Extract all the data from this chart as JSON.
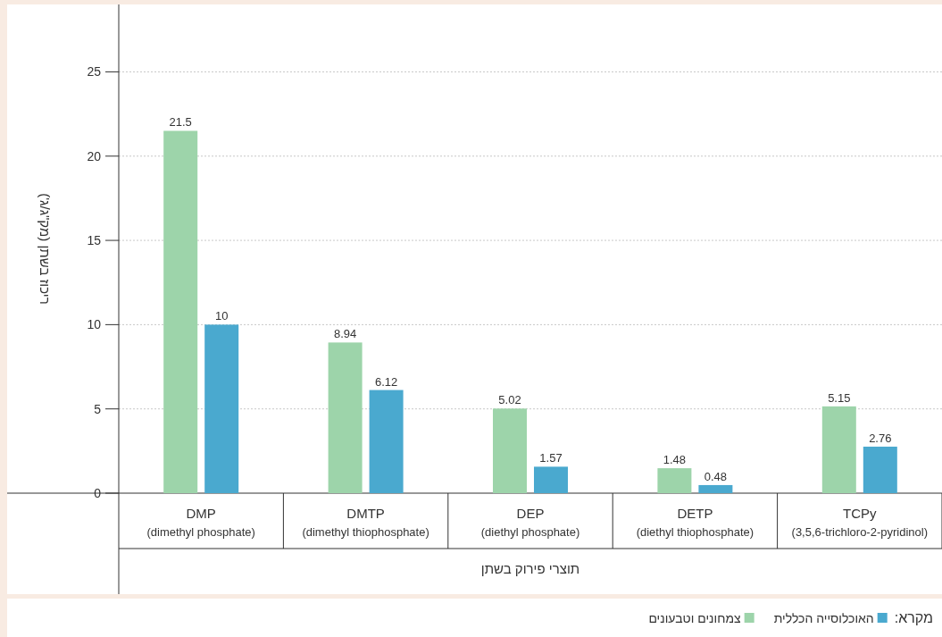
{
  "chart_data": {
    "type": "bar",
    "categories": [
      "DMP\n(dimethyl phosphate)",
      "DMTP\n(dimethyl thiophosphate)",
      "DEP\n(diethyl phosphate)",
      "DETP\n(diethyl thiophosphate)",
      "TCPy\n(3,5,6-trichloro-2-pyridinol)"
    ],
    "series": [
      {
        "name": "צמחונים וטבעונים",
        "color": "#9dd4aa",
        "values": [
          21.5,
          8.94,
          5.02,
          1.48,
          5.15
        ]
      },
      {
        "name": "האוכלוסייה הכללית",
        "color": "#4aa9cf",
        "values": [
          10,
          6.12,
          1.57,
          0.48,
          2.76
        ]
      }
    ],
    "xlabel": "תוצרי פירוק בשתן",
    "ylabel": "ריכוז בשתן (מק\"ג/ג')",
    "legend_title": "מקרא:",
    "ylim": [
      0,
      29
    ],
    "yticks": [
      0,
      5,
      10,
      15,
      20,
      25
    ],
    "grid": "y",
    "legend": "bottom",
    "data_labels": true
  }
}
